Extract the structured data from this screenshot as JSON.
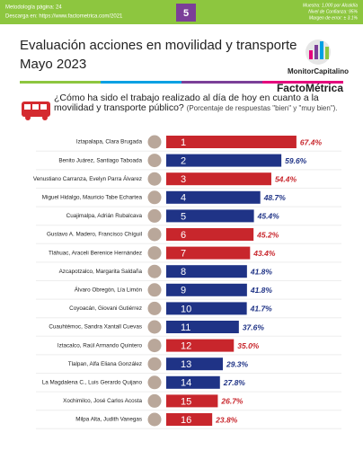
{
  "header": {
    "methodology": "Metodología página: 24",
    "download": "Descarga en: https://www.factometrica.com/2021",
    "page": "5",
    "sample": "Muestra: 1,000 por Alcaldía",
    "confidence": "Nivel de Confianza: 95%",
    "error": "Margen de error: ± 3.1%",
    "brand_left": "MonitorCapitalino",
    "brand_right": "FactoMétrica"
  },
  "chart_data": {
    "type": "bar",
    "title": "Evaluación acciones en movilidad y transporte",
    "subtitle": "Mayo 2023",
    "question": "¿Cómo ha sido el trabajo realizado al día de hoy en cuanto a la movilidad y transporte público?",
    "note": "(Porcentaje de respuestas \"bien\" y \"muy bien\").",
    "categories": [
      "Iztapalapa, Clara Brugada",
      "Benito Juárez, Santiago Taboada",
      "Venustiano Carranza, Evelyn Parra Álvarez",
      "Miguel Hidalgo, Mauricio Tabe Echartea",
      "Cuajimalpa, Adrián Rubalcava",
      "Gustavo A. Madero, Francisco Chíguil",
      "Tláhuac, Araceli Berenice Hernández",
      "Azcapotzalco, Margarita Saldaña",
      "Álvaro Obregón, Lía Limón",
      "Coyoacán, Giovani Gutiérrez",
      "Cuauhtémoc, Sandra Xantall Cuevas",
      "Iztacalco, Raúl Armando Quintero",
      "Tlalpan, Alfa Eliana González",
      "La Magdalena C., Luis Gerardo Quijano",
      "Xochimilco, José Carlos Acosta",
      "Milpa Alta, Judith Vanegas"
    ],
    "ranks": [
      "1",
      "2",
      "3",
      "4",
      "5",
      "6",
      "7",
      "8",
      "9",
      "10",
      "11",
      "12",
      "13",
      "14",
      "15",
      "16"
    ],
    "values": [
      67.4,
      59.6,
      54.4,
      48.7,
      45.4,
      45.2,
      43.4,
      41.8,
      41.8,
      41.7,
      37.6,
      35.0,
      29.3,
      27.8,
      26.7,
      23.8
    ],
    "value_labels": [
      "67.4%",
      "59.6%",
      "54.4%",
      "48.7%",
      "45.4%",
      "45.2%",
      "43.4%",
      "41.8%",
      "41.8%",
      "41.7%",
      "37.6%",
      "35.0%",
      "29.3%",
      "27.8%",
      "26.7%",
      "23.8%"
    ],
    "colors": [
      "#c8262c",
      "#1f3386",
      "#c8262c",
      "#1f3386",
      "#1f3386",
      "#c8262c",
      "#c8262c",
      "#1f3386",
      "#1f3386",
      "#1f3386",
      "#1f3386",
      "#c8262c",
      "#1f3386",
      "#1f3386",
      "#c8262c",
      "#c8262c"
    ]
  }
}
